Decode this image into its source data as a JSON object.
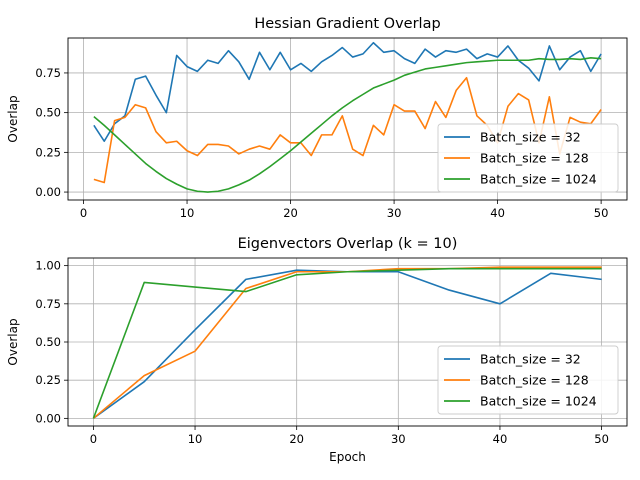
{
  "chart_data": [
    {
      "type": "line",
      "title": "Hessian Gradient Overlap",
      "xlabel": "",
      "ylabel": "Overlap",
      "xlim": [
        -1.5,
        52.5
      ],
      "ylim": [
        -0.05,
        0.97
      ],
      "xticks": [
        0,
        10,
        20,
        30,
        40,
        50
      ],
      "xtick_labels": [
        "0",
        "10",
        "20",
        "30",
        "40",
        "50"
      ],
      "yticks": [
        0.0,
        0.25,
        0.5,
        0.75
      ],
      "ytick_labels": [
        "0.00",
        "0.25",
        "0.50",
        "0.75"
      ],
      "grid": true,
      "legend_position": "lower-right",
      "series": [
        {
          "name": "Batch_size = 32",
          "color": "#1f77b4",
          "x": [
            1,
            2,
            3,
            4,
            5,
            6,
            7,
            8,
            9,
            10,
            11,
            12,
            13,
            14,
            15,
            16,
            17,
            18,
            19,
            20,
            21,
            22,
            23,
            24,
            25,
            26,
            27,
            28,
            29,
            30,
            31,
            32,
            33,
            34,
            35,
            36,
            37,
            38,
            39,
            40,
            41,
            42,
            43,
            44,
            45,
            46,
            47,
            48,
            49,
            50
          ],
          "y": [
            0.42,
            0.32,
            0.43,
            0.48,
            0.71,
            0.73,
            0.61,
            0.5,
            0.86,
            0.79,
            0.76,
            0.83,
            0.81,
            0.89,
            0.82,
            0.71,
            0.88,
            0.77,
            0.88,
            0.77,
            0.81,
            0.76,
            0.82,
            0.86,
            0.91,
            0.85,
            0.87,
            0.94,
            0.88,
            0.89,
            0.84,
            0.81,
            0.9,
            0.85,
            0.89,
            0.88,
            0.9,
            0.84,
            0.87,
            0.85,
            0.92,
            0.83,
            0.78,
            0.7,
            0.92,
            0.77,
            0.85,
            0.89,
            0.76,
            0.87
          ]
        },
        {
          "name": "Batch_size = 128",
          "color": "#ff7f0e",
          "x": [
            1,
            2,
            3,
            4,
            5,
            6,
            7,
            8,
            9,
            10,
            11,
            12,
            13,
            14,
            15,
            16,
            17,
            18,
            19,
            20,
            21,
            22,
            23,
            24,
            25,
            26,
            27,
            28,
            29,
            30,
            31,
            32,
            33,
            34,
            35,
            36,
            37,
            38,
            39,
            40,
            41,
            42,
            43,
            44,
            45,
            46,
            47,
            48,
            49,
            50
          ],
          "y": [
            0.08,
            0.06,
            0.45,
            0.47,
            0.55,
            0.53,
            0.38,
            0.31,
            0.32,
            0.26,
            0.23,
            0.3,
            0.3,
            0.29,
            0.24,
            0.27,
            0.29,
            0.27,
            0.36,
            0.31,
            0.31,
            0.23,
            0.36,
            0.36,
            0.48,
            0.27,
            0.23,
            0.42,
            0.36,
            0.55,
            0.51,
            0.51,
            0.4,
            0.57,
            0.47,
            0.64,
            0.72,
            0.48,
            0.42,
            0.31,
            0.54,
            0.62,
            0.58,
            0.31,
            0.6,
            0.24,
            0.47,
            0.44,
            0.43,
            0.52
          ]
        },
        {
          "name": "Batch_size = 1024",
          "color": "#2ca02c",
          "x": [
            1,
            2,
            3,
            4,
            5,
            6,
            7,
            8,
            9,
            10,
            11,
            12,
            13,
            14,
            15,
            16,
            17,
            18,
            19,
            20,
            21,
            22,
            23,
            24,
            25,
            26,
            27,
            28,
            29,
            30,
            31,
            32,
            33,
            34,
            35,
            36,
            37,
            38,
            39,
            40,
            41,
            42,
            43,
            44,
            45,
            46,
            47,
            48,
            49,
            50
          ],
          "y": [
            0.475,
            0.42,
            0.36,
            0.3,
            0.24,
            0.18,
            0.13,
            0.085,
            0.05,
            0.02,
            0.005,
            0.0,
            0.005,
            0.02,
            0.045,
            0.075,
            0.115,
            0.16,
            0.21,
            0.26,
            0.315,
            0.37,
            0.425,
            0.48,
            0.53,
            0.575,
            0.615,
            0.655,
            0.68,
            0.705,
            0.735,
            0.755,
            0.775,
            0.785,
            0.795,
            0.805,
            0.815,
            0.82,
            0.825,
            0.83,
            0.83,
            0.83,
            0.83,
            0.84,
            0.835,
            0.835,
            0.84,
            0.835,
            0.845,
            0.84
          ]
        }
      ]
    },
    {
      "type": "line",
      "title": "Eigenvectors Overlap (k = 10)",
      "xlabel": "Epoch",
      "ylabel": "Overlap",
      "xlim": [
        -2.5,
        52.5
      ],
      "ylim": [
        -0.05,
        1.05
      ],
      "xticks": [
        0,
        10,
        20,
        30,
        40,
        50
      ],
      "xtick_labels": [
        "0",
        "10",
        "20",
        "30",
        "40",
        "50"
      ],
      "yticks": [
        0.0,
        0.25,
        0.5,
        0.75,
        1.0
      ],
      "ytick_labels": [
        "0.00",
        "0.25",
        "0.50",
        "0.75",
        "1.00"
      ],
      "grid": true,
      "legend_position": "lower-right",
      "series": [
        {
          "name": "Batch_size = 32",
          "color": "#1f77b4",
          "x": [
            0,
            5,
            10,
            15,
            20,
            25,
            30,
            35,
            40,
            45,
            50
          ],
          "y": [
            0.0,
            0.24,
            0.58,
            0.91,
            0.97,
            0.96,
            0.96,
            0.84,
            0.75,
            0.95,
            0.91
          ]
        },
        {
          "name": "Batch_size = 128",
          "color": "#ff7f0e",
          "x": [
            0,
            5,
            10,
            15,
            20,
            25,
            30,
            35,
            40,
            45,
            50
          ],
          "y": [
            0.0,
            0.28,
            0.44,
            0.85,
            0.96,
            0.96,
            0.98,
            0.98,
            0.99,
            0.99,
            0.99
          ]
        },
        {
          "name": "Batch_size = 1024",
          "color": "#2ca02c",
          "x": [
            0,
            5,
            10,
            15,
            20,
            25,
            30,
            35,
            40,
            45,
            50
          ],
          "y": [
            0.0,
            0.89,
            0.86,
            0.83,
            0.94,
            0.96,
            0.97,
            0.98,
            0.98,
            0.98,
            0.98
          ]
        }
      ]
    }
  ]
}
